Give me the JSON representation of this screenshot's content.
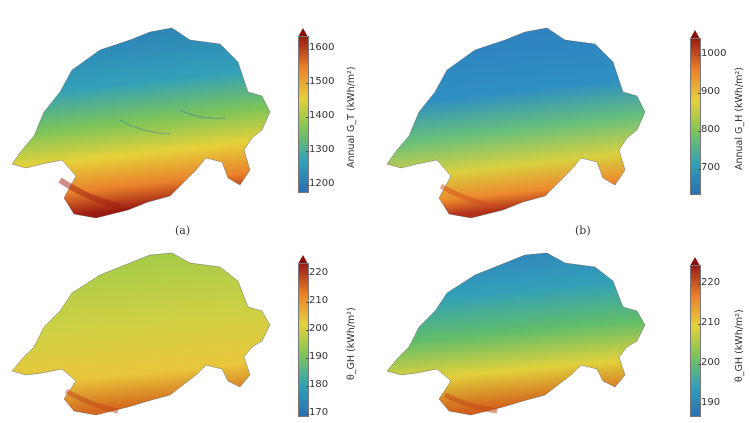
{
  "colors": {
    "ramp": [
      "#2b6fb3",
      "#2f8fc0",
      "#35aaa8",
      "#58bb7a",
      "#9ccb4a",
      "#e3d23d",
      "#f0a53a",
      "#d45a1f",
      "#8b0a0a"
    ]
  },
  "panels": [
    {
      "caption": "(a)",
      "colorbar_label": "Annual G_T (kWh/m²)",
      "ticks": [
        "1600",
        "1500",
        "1400",
        "1300",
        "1200"
      ],
      "pattern": "south-hot"
    },
    {
      "caption": "(b)",
      "colorbar_label": "Annual G_H (kWh/m²)",
      "ticks": [
        "1000",
        "900",
        "800",
        "700"
      ],
      "pattern": "south-hot"
    },
    {
      "caption": "",
      "colorbar_label": "θ_GH (kWh/m²)",
      "ticks": [
        "220",
        "210",
        "200",
        "190",
        "180",
        "170"
      ],
      "pattern": "uniform-warm"
    },
    {
      "caption": "",
      "colorbar_label": "θ_GH (kWh/m²)",
      "ticks": [
        "220",
        "210",
        "200",
        "190"
      ],
      "pattern": "south-hot"
    }
  ]
}
